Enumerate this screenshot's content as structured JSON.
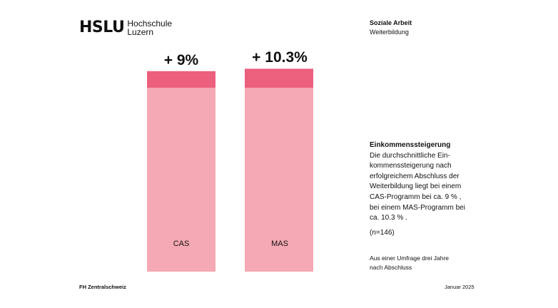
{
  "logo": {
    "main": "HSLU",
    "line1": "Hochschule",
    "line2": "Luzern"
  },
  "department": {
    "title": "Soziale Arbeit",
    "subtitle": "Weiterbildung"
  },
  "chart_data": {
    "type": "bar",
    "categories": [
      "CAS",
      "MAS"
    ],
    "values": [
      9,
      10.3
    ],
    "value_labels": [
      "+ 9%",
      "+ 10.3%"
    ],
    "colors": {
      "base": "#f5a9b4",
      "increase": "#ec5f7d"
    }
  },
  "info": {
    "title": "Einkommenssteigerung",
    "lines": [
      "Die durchschnittliche Ein-",
      "kommenssteigerung nach",
      "erfolgreichem Abschluss der",
      "Weiterbildung liegt bei einem",
      "CAS-Programm bei ca. 9 % ,",
      "bei einem MAS-Programm bei",
      "ca. 10.3 % ."
    ]
  },
  "sample": "(n=146)",
  "survey": {
    "line1": "Aus einer Umfrage drei Jahre",
    "line2": "nach Abschluss"
  },
  "footer": {
    "left": "FH Zentralschweiz",
    "right": "Januar 2025"
  }
}
